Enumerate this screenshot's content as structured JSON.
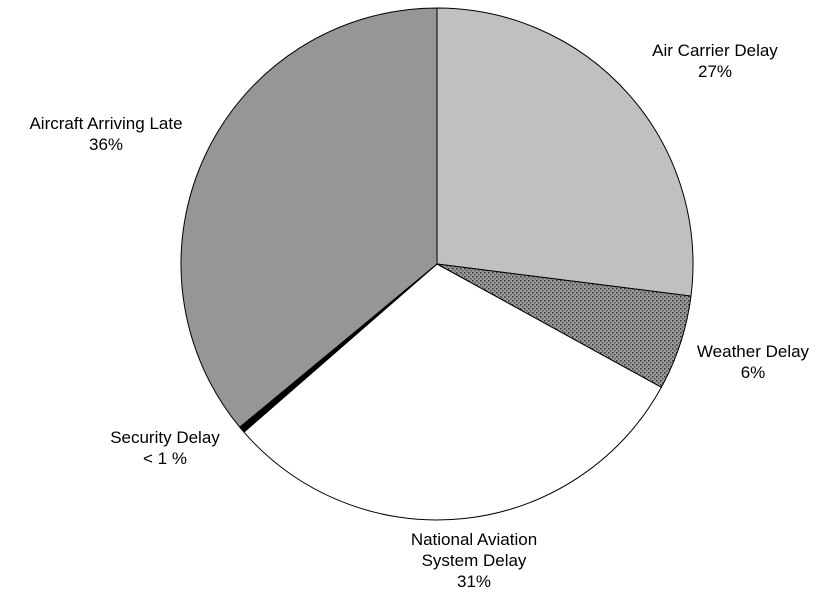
{
  "chart_data": {
    "type": "pie",
    "title": "",
    "slices": [
      {
        "name": "Air Carrier Delay",
        "label_lines": [
          "Air Carrier Delay",
          "27%"
        ],
        "value": 27.0,
        "color": "#c0c0c0",
        "pattern": "none"
      },
      {
        "name": "Weather Delay",
        "label_lines": [
          "Weather Delay",
          "6%"
        ],
        "value": 6.0,
        "color": "#808080",
        "pattern": "dots"
      },
      {
        "name": "National Aviation System Delay",
        "label_lines": [
          "National Aviation",
          "System Delay",
          "31%"
        ],
        "value": 30.6,
        "color": "#ffffff",
        "pattern": "none"
      },
      {
        "name": "Security Delay",
        "label_lines": [
          "Security Delay",
          "< 1 %"
        ],
        "value": 0.4,
        "color": "#000000",
        "pattern": "none"
      },
      {
        "name": "Aircraft Arriving Late",
        "label_lines": [
          "Aircraft Arriving Late",
          "36%"
        ],
        "value": 36.0,
        "color": "#969696",
        "pattern": "none"
      }
    ]
  }
}
